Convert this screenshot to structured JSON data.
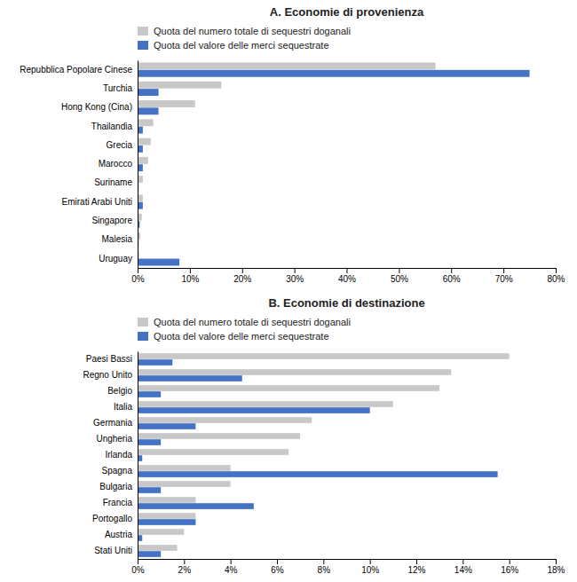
{
  "chart_data": [
    {
      "type": "bar",
      "orientation": "horizontal",
      "title": "A. Economie di provenienza",
      "categories": [
        "Repubblica Popolare Cinese",
        "Turchia",
        "Hong Kong (Cina)",
        "Thailandia",
        "Grecia",
        "Marocco",
        "Suriname",
        "Emirati Arabi Uniti",
        "Singapore",
        "Malesia",
        "Uruguay"
      ],
      "series": [
        {
          "name": "Quota del numero totale di sequestri doganali",
          "color": "#c8c8c8",
          "values": [
            57,
            16,
            11,
            3.0,
            2.5,
            2.0,
            1.0,
            1.0,
            0.8,
            0.5,
            0.3
          ]
        },
        {
          "name": "Quota del valore delle merci sequestrate",
          "color": "#4472c4",
          "values": [
            75,
            4.0,
            4.0,
            1.0,
            1.0,
            1.0,
            0.2,
            1.0,
            0.4,
            0.2,
            8.0
          ]
        }
      ],
      "xlim": [
        0,
        80
      ],
      "xticks": [
        {
          "value": 0,
          "label": "0%"
        },
        {
          "value": 10,
          "label": "10%"
        },
        {
          "value": 20,
          "label": "20%"
        },
        {
          "value": 30,
          "label": "30%"
        },
        {
          "value": 40,
          "label": "40%"
        },
        {
          "value": 50,
          "label": "50%"
        },
        {
          "value": 60,
          "label": "60%"
        },
        {
          "value": 70,
          "label": "70%"
        },
        {
          "value": 80,
          "label": "80%"
        }
      ],
      "grid": false,
      "legend": "top"
    },
    {
      "type": "bar",
      "orientation": "horizontal",
      "title": "B. Economie di destinazione",
      "categories": [
        "Paesi Bassi",
        "Regno Unito",
        "Belgio",
        "Italia",
        "Germania",
        "Ungheria",
        "Irlanda",
        "Spagna",
        "Bulgaria",
        "Francia",
        "Portogallo",
        "Austria",
        "Stati Uniti"
      ],
      "series": [
        {
          "name": "Quota del numero totale di sequestri doganali",
          "color": "#c8c8c8",
          "values": [
            16.0,
            13.5,
            13.0,
            11.0,
            7.5,
            7.0,
            6.5,
            4.0,
            4.0,
            2.5,
            2.5,
            2.0,
            1.7
          ]
        },
        {
          "name": "Quota del valore delle merci sequestrate",
          "color": "#4472c4",
          "values": [
            1.5,
            4.5,
            1.0,
            10.0,
            2.5,
            1.0,
            0.2,
            15.5,
            1.0,
            5.0,
            2.5,
            0.2,
            1.0
          ]
        }
      ],
      "xlim": [
        0,
        18
      ],
      "xticks": [
        {
          "value": 0,
          "label": "0%"
        },
        {
          "value": 2,
          "label": "2%"
        },
        {
          "value": 4,
          "label": "4%"
        },
        {
          "value": 6,
          "label": "6%"
        },
        {
          "value": 8,
          "label": "8%"
        },
        {
          "value": 10,
          "label": "10%"
        },
        {
          "value": 12,
          "label": "12%"
        },
        {
          "value": 14,
          "label": "14%"
        },
        {
          "value": 16,
          "label": "16%"
        },
        {
          "value": 18,
          "label": "18%"
        }
      ],
      "grid": false,
      "legend": "top"
    }
  ]
}
